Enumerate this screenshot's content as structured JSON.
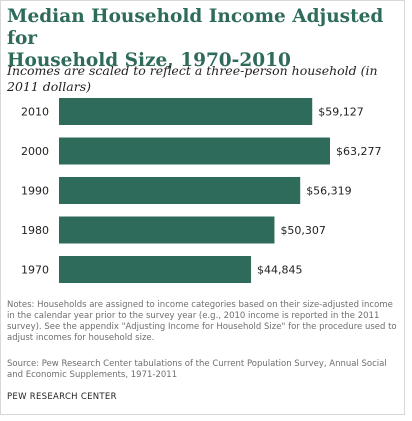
{
  "title_line1": "Median Household Income Adjusted for",
  "title_line2": "Household Size, 1970-2010",
  "subtitle": "Incomes are scaled to reflect a three-person household (in 2011 dollars)",
  "notes": "Notes: Households are assigned to income categories based on their size-adjusted income in the calendar year prior to the survey year (e.g., 2010 income is reported in the 2011 survey).  See the appendix \"Adjusting Income  for Household Size\" for the procedure used to adjust incomes for household size.",
  "source": "Source: Pew Research Center tabulations of the Current Population Survey, Annual Social and Economic Supplements, 1971-2011",
  "footer": "PEW RESEARCH CENTER",
  "colors": {
    "title": "#2e6b5b",
    "bar": "#2e6b5b"
  },
  "chart_data": {
    "type": "bar",
    "orientation": "horizontal",
    "categories": [
      "2010",
      "2000",
      "1990",
      "1980",
      "1970"
    ],
    "values": [
      59127,
      63277,
      56319,
      50307,
      44845
    ],
    "value_labels": [
      "$59,127",
      "$63,277",
      "$56,319",
      "$50,307",
      "$44,845"
    ],
    "grid": false
  }
}
